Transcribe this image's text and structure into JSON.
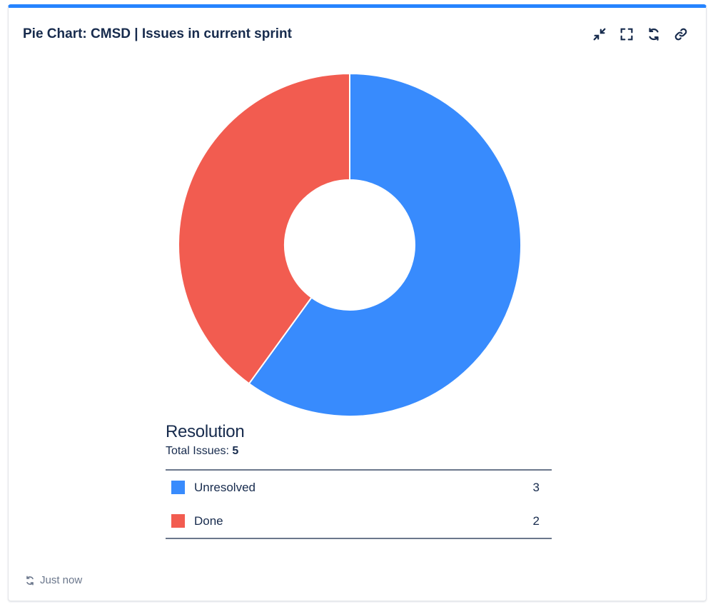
{
  "gadget": {
    "title": "Pie Chart: CMSD | Issues in current sprint",
    "actions": [
      {
        "name": "minimize",
        "icon": "minimize-icon"
      },
      {
        "name": "fullscreen",
        "icon": "fullscreen-icon"
      },
      {
        "name": "refresh",
        "icon": "refresh-icon"
      },
      {
        "name": "link",
        "icon": "link-icon"
      }
    ]
  },
  "legend": {
    "title": "Resolution",
    "total_label": "Total Issues:",
    "total_value": "5",
    "items": [
      {
        "label": "Unresolved",
        "count": "3",
        "color": "#388bfd"
      },
      {
        "label": "Done",
        "count": "2",
        "color": "#f25c50"
      }
    ]
  },
  "footer": {
    "updated": "Just now"
  },
  "chart_data": {
    "type": "pie",
    "donut": true,
    "title": "",
    "categories": [
      "Unresolved",
      "Done"
    ],
    "values": [
      3,
      2
    ],
    "colors": [
      "#388bfd",
      "#f25c50"
    ]
  }
}
